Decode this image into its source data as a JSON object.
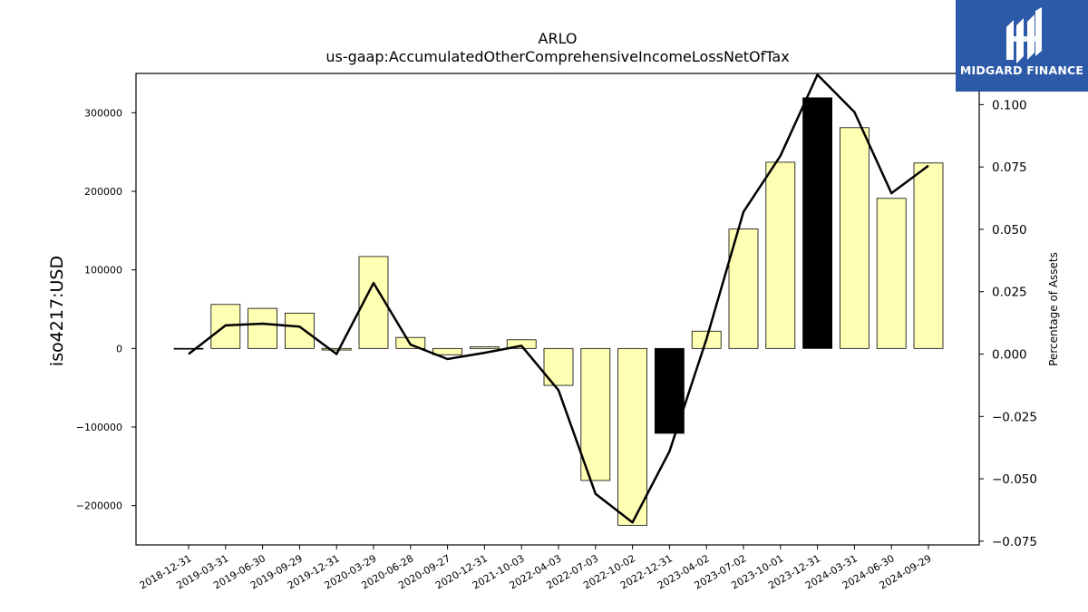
{
  "chart_data": {
    "type": "bar",
    "title": "ARLO",
    "subtitle": "us-gaap:AccumulatedOtherComprehensiveIncomeLossNetOfTax",
    "ylabel": "iso4217:USD",
    "y2label": "Percentage of Assets",
    "categories": [
      "2018-12-31",
      "2019-03-31",
      "2019-06-30",
      "2019-09-29",
      "2019-12-31",
      "2020-03-29",
      "2020-06-28",
      "2020-09-27",
      "2020-12-31",
      "2021-10-03",
      "2022-04-03",
      "2022-07-03",
      "2022-10-02",
      "2022-12-31",
      "2023-04-02",
      "2023-07-02",
      "2023-10-01",
      "2023-12-31",
      "2024-03-31",
      "2024-06-30",
      "2024-09-29"
    ],
    "values": [
      0,
      56000,
      51000,
      45000,
      -2000,
      117000,
      14000,
      -8000,
      2000,
      11000,
      -47000,
      -168000,
      -225000,
      -108000,
      22000,
      152000,
      237000,
      319000,
      281000,
      191000,
      236000
    ],
    "highlight_indices": [
      13,
      17
    ],
    "ylim": [
      -250000,
      350000
    ],
    "yticks": [
      -200000,
      -100000,
      0,
      100000,
      200000,
      300000
    ],
    "ytick_labels": [
      "−200000",
      "−100000",
      "0",
      "100000",
      "200000",
      "300000"
    ],
    "line_series": {
      "name": "Percentage of Assets",
      "values": [
        0.0,
        0.0115,
        0.0122,
        0.011,
        0.0,
        0.0285,
        0.0038,
        -0.002,
        0.0005,
        0.0033,
        -0.0145,
        -0.056,
        -0.0675,
        -0.039,
        0.006,
        0.057,
        0.0795,
        0.112,
        0.097,
        0.0645,
        0.0755
      ]
    },
    "y2lim": [
      -0.0765,
      0.1125
    ],
    "y2ticks": [
      -0.075,
      -0.05,
      -0.025,
      0.0,
      0.025,
      0.05,
      0.075,
      0.1
    ],
    "y2tick_labels": [
      "−0.075",
      "−0.050",
      "−0.025",
      "0.000",
      "0.025",
      "0.050",
      "0.075",
      "0.100"
    ],
    "bar_color": "#ffffb3",
    "highlight_color": "#000000",
    "line_color": "#000000",
    "grid": false
  },
  "logo": {
    "text": "MIDGARD FINANCE",
    "background": "#2d5aa8"
  }
}
